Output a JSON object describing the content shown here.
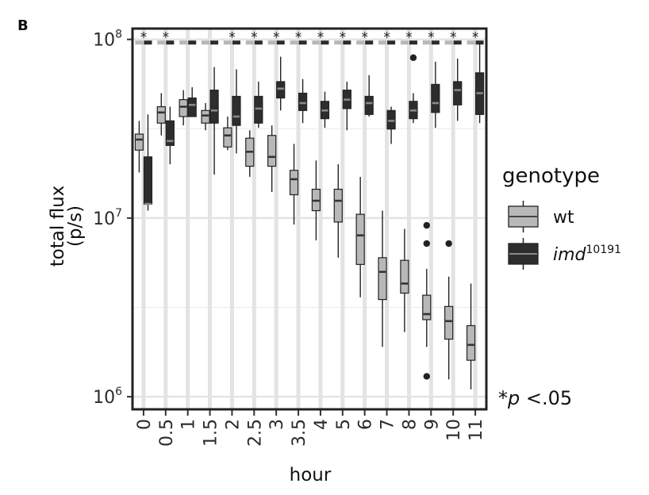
{
  "panel_label": "B",
  "chart_data": {
    "type": "boxplot",
    "xlabel": "hour",
    "ylabel_line1": "total flux",
    "ylabel_line2": "(p/s)",
    "y_scale": "log10",
    "ylim": [
      850000,
      115000000
    ],
    "y_ticks": [
      {
        "value": 1000000,
        "base": "10",
        "exp": "6"
      },
      {
        "value": 10000000,
        "base": "10",
        "exp": "7"
      },
      {
        "value": 100000000,
        "base": "10",
        "exp": "8"
      }
    ],
    "grid": true,
    "categories": [
      "0",
      "0.5",
      "1",
      "1.5",
      "2",
      "2.5",
      "3",
      "3.5",
      "4",
      "5",
      "6",
      "7",
      "8",
      "9",
      "10",
      "11"
    ],
    "significant": [
      true,
      true,
      false,
      false,
      true,
      true,
      true,
      true,
      true,
      true,
      true,
      true,
      true,
      true,
      true,
      true
    ],
    "significance_symbol": "*",
    "legend": {
      "title": "genotype",
      "placement": "right",
      "entries": [
        {
          "name": "wt",
          "color": "#b8b8b8"
        },
        {
          "name": "imd",
          "superscript": "10191",
          "color": "#2d2d2d",
          "italic": true
        }
      ]
    },
    "note": {
      "prefix": "*",
      "italic": "p",
      "suffix": " <.05"
    },
    "series": [
      {
        "name": "wt",
        "color": "#b8b8b8",
        "boxes": [
          {
            "min": 18000000,
            "q1": 24000000,
            "median": 27500000,
            "q3": 29500000,
            "max": 35000000,
            "outliers": []
          },
          {
            "min": 29000000,
            "q1": 34000000,
            "median": 39000000,
            "q3": 42000000,
            "max": 50000000,
            "outliers": []
          },
          {
            "min": 33000000,
            "q1": 37000000,
            "median": 42000000,
            "q3": 46000000,
            "max": 52000000,
            "outliers": []
          },
          {
            "min": 31000000,
            "q1": 34000000,
            "median": 37500000,
            "q3": 40000000,
            "max": 44000000,
            "outliers": []
          },
          {
            "min": 24000000,
            "q1": 25000000,
            "median": 29000000,
            "q3": 32000000,
            "max": 37000000,
            "outliers": []
          },
          {
            "min": 17000000,
            "q1": 19500000,
            "median": 23500000,
            "q3": 28000000,
            "max": 31000000,
            "outliers": []
          },
          {
            "min": 14000000,
            "q1": 19500000,
            "median": 22000000,
            "q3": 29000000,
            "max": 33000000,
            "outliers": []
          },
          {
            "min": 9200000,
            "q1": 13500000,
            "median": 16500000,
            "q3": 18500000,
            "max": 26000000,
            "outliers": []
          },
          {
            "min": 7500000,
            "q1": 11000000,
            "median": 12500000,
            "q3": 14500000,
            "max": 21000000,
            "outliers": []
          },
          {
            "min": 6000000,
            "q1": 9500000,
            "median": 12500000,
            "q3": 14500000,
            "max": 20000000,
            "outliers": []
          },
          {
            "min": 3600000,
            "q1": 5500000,
            "median": 8000000,
            "q3": 10500000,
            "max": 17000000,
            "outliers": []
          },
          {
            "min": 1900000,
            "q1": 3500000,
            "median": 5000000,
            "q3": 6000000,
            "max": 11000000,
            "outliers": []
          },
          {
            "min": 2300000,
            "q1": 3800000,
            "median": 4300000,
            "q3": 5800000,
            "max": 8700000,
            "outliers": []
          },
          {
            "min": 1900000,
            "q1": 2700000,
            "median": 2900000,
            "q3": 3700000,
            "max": 5200000,
            "outliers": [
              9100000,
              7200000,
              1300000
            ]
          },
          {
            "min": 1250000,
            "q1": 2100000,
            "median": 2650000,
            "q3": 3200000,
            "max": 4700000,
            "outliers": [
              7200000
            ]
          },
          {
            "min": 1100000,
            "q1": 1600000,
            "median": 1950000,
            "q3": 2500000,
            "max": 4300000,
            "outliers": []
          }
        ]
      },
      {
        "name": "imd",
        "color": "#2d2d2d",
        "boxes": [
          {
            "min": 11000000,
            "q1": 12000000,
            "median": 12000000,
            "q3": 22000000,
            "max": 38000000,
            "outliers": []
          },
          {
            "min": 20000000,
            "q1": 25500000,
            "median": 27000000,
            "q3": 35000000,
            "max": 42000000,
            "outliers": []
          },
          {
            "min": 37000000,
            "q1": 37000000,
            "median": 43000000,
            "q3": 47000000,
            "max": 54000000,
            "outliers": []
          },
          {
            "min": 17500000,
            "q1": 34000000,
            "median": 40000000,
            "q3": 52000000,
            "max": 70000000,
            "outliers": []
          },
          {
            "min": 23000000,
            "q1": 33000000,
            "median": 37000000,
            "q3": 48000000,
            "max": 68000000,
            "outliers": []
          },
          {
            "min": 32000000,
            "q1": 34000000,
            "median": 41000000,
            "q3": 48000000,
            "max": 58000000,
            "outliers": []
          },
          {
            "min": 40000000,
            "q1": 47000000,
            "median": 53000000,
            "q3": 58000000,
            "max": 80000000,
            "outliers": []
          },
          {
            "min": 34000000,
            "q1": 40000000,
            "median": 44000000,
            "q3": 50000000,
            "max": 60000000,
            "outliers": []
          },
          {
            "min": 32000000,
            "q1": 36000000,
            "median": 40000000,
            "q3": 45000000,
            "max": 51000000,
            "outliers": []
          },
          {
            "min": 31000000,
            "q1": 41000000,
            "median": 46000000,
            "q3": 52000000,
            "max": 58000000,
            "outliers": []
          },
          {
            "min": 37000000,
            "q1": 38000000,
            "median": 44000000,
            "q3": 48000000,
            "max": 63000000,
            "outliers": []
          },
          {
            "min": 26000000,
            "q1": 31500000,
            "median": 35000000,
            "q3": 40000000,
            "max": 42000000,
            "outliers": []
          },
          {
            "min": 34000000,
            "q1": 36000000,
            "median": 40000000,
            "q3": 45000000,
            "max": 50000000,
            "outliers": [
              79000000
            ]
          },
          {
            "min": 32000000,
            "q1": 39000000,
            "median": 44000000,
            "q3": 56000000,
            "max": 75000000,
            "outliers": []
          },
          {
            "min": 35000000,
            "q1": 43000000,
            "median": 52000000,
            "q3": 58000000,
            "max": 78000000,
            "outliers": []
          },
          {
            "min": 34000000,
            "q1": 38000000,
            "median": 50000000,
            "q3": 65000000,
            "max": 95000000,
            "outliers": []
          }
        ]
      }
    ]
  }
}
